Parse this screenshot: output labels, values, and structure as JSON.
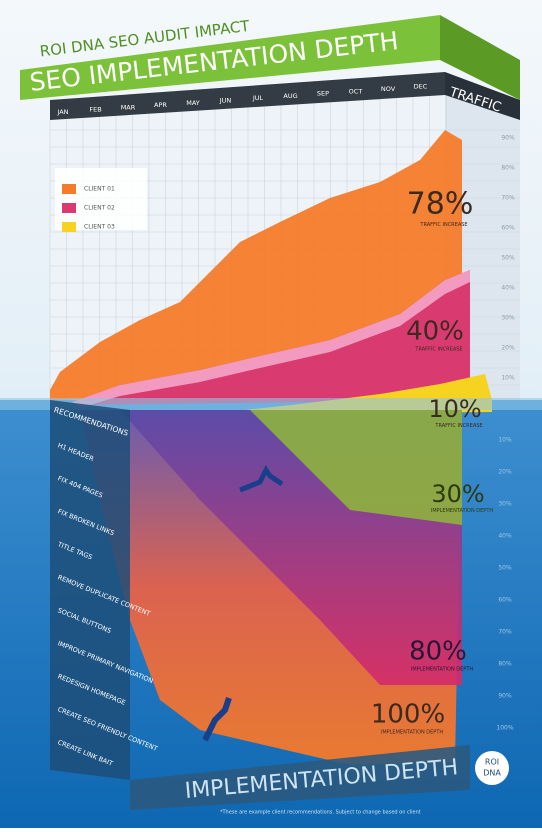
{
  "header": {
    "subtitle": "ROI DNA SEO AUDIT IMPACT",
    "title": "SEO IMPLEMENTATION DEPTH"
  },
  "months": [
    "JAN",
    "FEB",
    "MAR",
    "APR",
    "MAY",
    "JUN",
    "JUL",
    "AUG",
    "SEP",
    "OCT",
    "NOV",
    "DEC"
  ],
  "traffic_axis": {
    "title": "TRAFFIC",
    "ticks": [
      "90%",
      "80%",
      "70%",
      "60%",
      "50%",
      "40%",
      "30%",
      "20%",
      "10%"
    ]
  },
  "legend": [
    "CLIENT 01",
    "CLIENT 02",
    "CLIENT 03"
  ],
  "callouts": [
    {
      "value": "78%",
      "text": "TRAFFIC INCREASE"
    },
    {
      "value": "40%",
      "text": "TRAFFIC INCREASE"
    },
    {
      "value": "10%",
      "text": "TRAFFIC INCREASE"
    },
    {
      "value": "30%",
      "text": "IMPLEMENTATION DEPTH"
    },
    {
      "value": "80%",
      "text": "IMPLEMENTATION DEPTH"
    },
    {
      "value": "100%",
      "text": "IMPLEMENTATION DEPTH"
    }
  ],
  "recommendations": {
    "title": "RECOMMENDATIONS",
    "items": [
      "H1 HEADER",
      "FIX 404 PAGES",
      "FIX BROKEN LINKS",
      "TITLE TAGS",
      "REMOVE DUPLICATE CONTENT",
      "SOCIAL BUTTONS",
      "IMPROVE PRIMARY NAVIGATION",
      "REDESIGN HOMEPAGE",
      "CREATE SEO FRIENDLY CONTENT",
      "CREATE LINK BAIT"
    ]
  },
  "depth_axis": {
    "ticks": [
      "10%",
      "20%",
      "30%",
      "40%",
      "50%",
      "60%",
      "70%",
      "80%",
      "90%",
      "100%"
    ]
  },
  "footer": {
    "title": "IMPLEMENTATION DEPTH",
    "note": "*These are example client recommendations. Subject to change based on client",
    "logo": [
      "ROI",
      "DNA"
    ]
  }
}
